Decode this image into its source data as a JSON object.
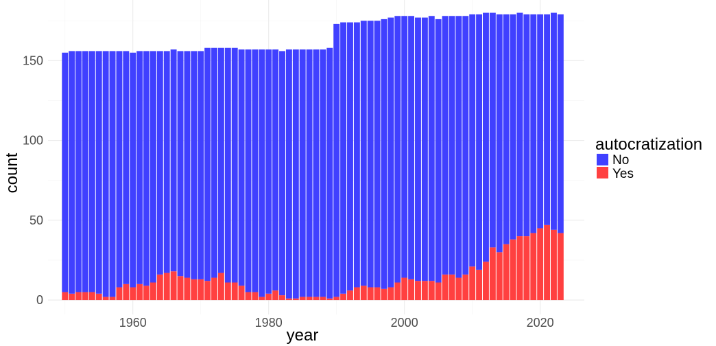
{
  "chart_data": {
    "type": "bar",
    "stacked": true,
    "title": "",
    "xlabel": "year",
    "ylabel": "count",
    "x_ticks": [
      1960,
      1980,
      2000,
      2020
    ],
    "y_ticks": [
      0,
      50,
      100,
      150
    ],
    "xlim": [
      1947.5,
      2026.5
    ],
    "ylim": [
      -9,
      188
    ],
    "grid": true,
    "legend": {
      "title": "autocratization",
      "position": "right",
      "entries": [
        {
          "label": "No",
          "color": "#4040ff"
        },
        {
          "label": "Yes",
          "color": "#ff4040"
        }
      ]
    },
    "years": [
      1950,
      1951,
      1952,
      1953,
      1954,
      1955,
      1956,
      1957,
      1958,
      1959,
      1960,
      1961,
      1962,
      1963,
      1964,
      1965,
      1966,
      1967,
      1968,
      1969,
      1970,
      1971,
      1972,
      1973,
      1974,
      1975,
      1976,
      1977,
      1978,
      1979,
      1980,
      1981,
      1982,
      1983,
      1984,
      1985,
      1986,
      1987,
      1988,
      1989,
      1990,
      1991,
      1992,
      1993,
      1994,
      1995,
      1996,
      1997,
      1998,
      1999,
      2000,
      2001,
      2002,
      2003,
      2004,
      2005,
      2006,
      2007,
      2008,
      2009,
      2010,
      2011,
      2012,
      2013,
      2014,
      2015,
      2016,
      2017,
      2018,
      2019,
      2020,
      2021,
      2022,
      2023
    ],
    "series": [
      {
        "name": "No",
        "color": "#4040ff",
        "values": [
          150,
          152,
          151,
          151,
          151,
          152,
          154,
          154,
          148,
          146,
          147,
          146,
          147,
          145,
          140,
          139,
          139,
          141,
          142,
          143,
          143,
          146,
          144,
          141,
          147,
          147,
          148,
          152,
          152,
          155,
          153,
          151,
          153,
          156,
          156,
          155,
          155,
          155,
          155,
          157,
          171,
          170,
          168,
          166,
          166,
          167,
          167,
          169,
          169,
          167,
          164,
          165,
          165,
          165,
          166,
          165,
          162,
          162,
          164,
          162,
          158,
          160,
          156,
          147,
          149,
          144,
          141,
          140,
          139,
          137,
          134,
          132,
          136,
          137
        ]
      },
      {
        "name": "Yes",
        "color": "#ff4040",
        "values": [
          5,
          4,
          5,
          5,
          5,
          4,
          2,
          2,
          8,
          10,
          8,
          10,
          9,
          11,
          16,
          17,
          18,
          15,
          14,
          13,
          13,
          12,
          14,
          17,
          11,
          11,
          9,
          5,
          5,
          2,
          4,
          6,
          3,
          1,
          1,
          2,
          2,
          2,
          2,
          1,
          2,
          4,
          6,
          8,
          9,
          8,
          8,
          7,
          8,
          11,
          14,
          13,
          12,
          12,
          12,
          11,
          16,
          16,
          14,
          16,
          21,
          19,
          24,
          33,
          30,
          35,
          38,
          40,
          40,
          42,
          45,
          47,
          44,
          42
        ]
      }
    ]
  }
}
